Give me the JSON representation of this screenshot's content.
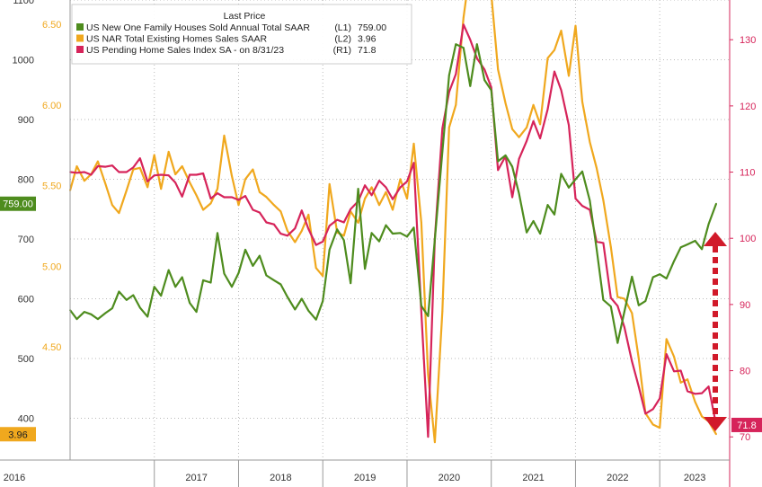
{
  "chart_data": {
    "type": "line",
    "legend_title": "Last Price",
    "legend_position": "top-left",
    "grid": true,
    "colors": {
      "green": "#4e8c1e",
      "orange": "#f0a81e",
      "red": "#d6245a",
      "arrow": "#d11a2a"
    },
    "axes": {
      "L1": {
        "min": 330,
        "max": 1100,
        "ticks": [
          400,
          500,
          600,
          700,
          800,
          900,
          1000,
          1100
        ],
        "labels": [
          "400",
          "500",
          "600",
          "700",
          "800",
          "900",
          "1000",
          "1100"
        ]
      },
      "L2": {
        "min": 3.8,
        "max": 6.65,
        "ticks": [
          4.5,
          5.0,
          5.5,
          6.0,
          6.5
        ],
        "labels": [
          "4.50",
          "5.00",
          "5.50",
          "6.00",
          "6.50"
        ]
      },
      "R1": {
        "min": 66.5,
        "max": 136,
        "ticks": [
          70,
          80,
          90,
          100,
          110,
          120,
          130
        ],
        "labels": [
          "70",
          "80",
          "90",
          "100",
          "110",
          "120",
          "130"
        ]
      }
    },
    "x_labels": [
      "2016",
      "2017",
      "2018",
      "2019",
      "2020",
      "2021",
      "2022",
      "2023"
    ],
    "x_start": 2016.0,
    "x_end": 2023.83,
    "series": [
      {
        "name": "US New One Family Houses Sold Annual Total SAAR",
        "axis": "L1",
        "axis_tag": "(L1)",
        "last_label": "759.00",
        "last_value": 759,
        "color_key": "green",
        "values": [
          [
            2016.0,
            581
          ],
          [
            2016.08,
            566
          ],
          [
            2016.17,
            578
          ],
          [
            2016.25,
            574
          ],
          [
            2016.33,
            566
          ],
          [
            2016.42,
            576
          ],
          [
            2016.5,
            584
          ],
          [
            2016.58,
            612
          ],
          [
            2016.67,
            598
          ],
          [
            2016.75,
            606
          ],
          [
            2016.83,
            585
          ],
          [
            2016.92,
            570
          ],
          [
            2017.0,
            620
          ],
          [
            2017.08,
            605
          ],
          [
            2017.17,
            648
          ],
          [
            2017.25,
            620
          ],
          [
            2017.33,
            636
          ],
          [
            2017.42,
            593
          ],
          [
            2017.5,
            578
          ],
          [
            2017.58,
            631
          ],
          [
            2017.67,
            627
          ],
          [
            2017.75,
            710
          ],
          [
            2017.83,
            642
          ],
          [
            2017.92,
            620
          ],
          [
            2018.0,
            643
          ],
          [
            2018.08,
            682
          ],
          [
            2018.17,
            655
          ],
          [
            2018.25,
            672
          ],
          [
            2018.33,
            639
          ],
          [
            2018.42,
            631
          ],
          [
            2018.5,
            624
          ],
          [
            2018.58,
            603
          ],
          [
            2018.67,
            582
          ],
          [
            2018.75,
            600
          ],
          [
            2018.83,
            580
          ],
          [
            2018.92,
            565
          ],
          [
            2019.0,
            596
          ],
          [
            2019.08,
            682
          ],
          [
            2019.17,
            716
          ],
          [
            2019.25,
            698
          ],
          [
            2019.33,
            626
          ],
          [
            2019.42,
            784
          ],
          [
            2019.5,
            650
          ],
          [
            2019.58,
            710
          ],
          [
            2019.67,
            696
          ],
          [
            2019.75,
            723
          ],
          [
            2019.83,
            709
          ],
          [
            2019.92,
            710
          ],
          [
            2020.0,
            704
          ],
          [
            2020.08,
            719
          ],
          [
            2020.17,
            588
          ],
          [
            2020.25,
            571
          ],
          [
            2020.33,
            699
          ],
          [
            2020.42,
            846
          ],
          [
            2020.5,
            974
          ],
          [
            2020.58,
            1026
          ],
          [
            2020.67,
            1020
          ],
          [
            2020.75,
            956
          ],
          [
            2020.83,
            1026
          ],
          [
            2020.92,
            966
          ],
          [
            2021.0,
            949
          ],
          [
            2021.08,
            830
          ],
          [
            2021.17,
            840
          ],
          [
            2021.25,
            821
          ],
          [
            2021.33,
            776
          ],
          [
            2021.42,
            711
          ],
          [
            2021.5,
            730
          ],
          [
            2021.58,
            709
          ],
          [
            2021.67,
            757
          ],
          [
            2021.75,
            741
          ],
          [
            2021.83,
            809
          ],
          [
            2021.92,
            786
          ],
          [
            2022.0,
            800
          ],
          [
            2022.08,
            813
          ],
          [
            2022.17,
            764
          ],
          [
            2022.25,
            684
          ],
          [
            2022.33,
            598
          ],
          [
            2022.42,
            587
          ],
          [
            2022.5,
            526
          ],
          [
            2022.58,
            578
          ],
          [
            2022.67,
            637
          ],
          [
            2022.75,
            589
          ],
          [
            2022.83,
            596
          ],
          [
            2022.92,
            636
          ],
          [
            2023.0,
            641
          ],
          [
            2023.08,
            634
          ],
          [
            2023.17,
            663
          ],
          [
            2023.25,
            686
          ],
          [
            2023.33,
            691
          ],
          [
            2023.42,
            697
          ],
          [
            2023.5,
            683
          ],
          [
            2023.58,
            725
          ],
          [
            2023.67,
            759
          ]
        ]
      },
      {
        "name": "US NAR Total Existing Homes Sales SAAR",
        "axis": "L2",
        "axis_tag": "(L2)",
        "last_label": "3.96",
        "last_value": 3.96,
        "color_key": "orange",
        "values": [
          [
            2016.0,
            5.47
          ],
          [
            2016.08,
            5.62
          ],
          [
            2016.17,
            5.53
          ],
          [
            2016.25,
            5.57
          ],
          [
            2016.33,
            5.65
          ],
          [
            2016.42,
            5.51
          ],
          [
            2016.5,
            5.38
          ],
          [
            2016.58,
            5.33
          ],
          [
            2016.67,
            5.47
          ],
          [
            2016.75,
            5.6
          ],
          [
            2016.83,
            5.61
          ],
          [
            2016.92,
            5.49
          ],
          [
            2017.0,
            5.69
          ],
          [
            2017.08,
            5.48
          ],
          [
            2017.17,
            5.71
          ],
          [
            2017.25,
            5.57
          ],
          [
            2017.33,
            5.62
          ],
          [
            2017.42,
            5.52
          ],
          [
            2017.5,
            5.44
          ],
          [
            2017.58,
            5.35
          ],
          [
            2017.67,
            5.39
          ],
          [
            2017.75,
            5.48
          ],
          [
            2017.83,
            5.81
          ],
          [
            2017.92,
            5.56
          ],
          [
            2018.0,
            5.38
          ],
          [
            2018.08,
            5.54
          ],
          [
            2018.17,
            5.6
          ],
          [
            2018.25,
            5.46
          ],
          [
            2018.33,
            5.43
          ],
          [
            2018.42,
            5.38
          ],
          [
            2018.5,
            5.34
          ],
          [
            2018.58,
            5.22
          ],
          [
            2018.67,
            5.15
          ],
          [
            2018.75,
            5.22
          ],
          [
            2018.83,
            5.32
          ],
          [
            2018.92,
            4.99
          ],
          [
            2019.0,
            4.94
          ],
          [
            2019.08,
            5.51
          ],
          [
            2019.17,
            5.21
          ],
          [
            2019.25,
            5.19
          ],
          [
            2019.33,
            5.34
          ],
          [
            2019.42,
            5.27
          ],
          [
            2019.5,
            5.42
          ],
          [
            2019.58,
            5.49
          ],
          [
            2019.67,
            5.38
          ],
          [
            2019.75,
            5.46
          ],
          [
            2019.83,
            5.35
          ],
          [
            2019.92,
            5.54
          ],
          [
            2020.0,
            5.42
          ],
          [
            2020.08,
            5.76
          ],
          [
            2020.17,
            5.27
          ],
          [
            2020.25,
            4.33
          ],
          [
            2020.33,
            3.91
          ],
          [
            2020.42,
            4.72
          ],
          [
            2020.5,
            5.86
          ],
          [
            2020.58,
            6.0
          ],
          [
            2020.67,
            6.54
          ],
          [
            2020.75,
            6.85
          ],
          [
            2020.83,
            6.69
          ],
          [
            2020.92,
            6.76
          ],
          [
            2021.0,
            6.69
          ],
          [
            2021.08,
            6.22
          ],
          [
            2021.17,
            6.01
          ],
          [
            2021.25,
            5.85
          ],
          [
            2021.33,
            5.8
          ],
          [
            2021.42,
            5.86
          ],
          [
            2021.5,
            6.0
          ],
          [
            2021.58,
            5.88
          ],
          [
            2021.67,
            6.29
          ],
          [
            2021.75,
            6.34
          ],
          [
            2021.83,
            6.46
          ],
          [
            2021.92,
            6.18
          ],
          [
            2022.0,
            6.49
          ],
          [
            2022.08,
            6.02
          ],
          [
            2022.17,
            5.77
          ],
          [
            2022.25,
            5.61
          ],
          [
            2022.33,
            5.41
          ],
          [
            2022.42,
            5.12
          ],
          [
            2022.5,
            4.81
          ],
          [
            2022.58,
            4.8
          ],
          [
            2022.67,
            4.71
          ],
          [
            2022.75,
            4.43
          ],
          [
            2022.83,
            4.09
          ],
          [
            2022.92,
            4.02
          ],
          [
            2023.0,
            4.0
          ],
          [
            2023.08,
            4.55
          ],
          [
            2023.17,
            4.44
          ],
          [
            2023.25,
            4.28
          ],
          [
            2023.33,
            4.3
          ],
          [
            2023.42,
            4.16
          ],
          [
            2023.5,
            4.07
          ],
          [
            2023.58,
            4.04
          ],
          [
            2023.67,
            3.96
          ]
        ]
      },
      {
        "name": "US Pending Home Sales Index SA - on 8/31/23",
        "axis": "R1",
        "axis_tag": "(R1)",
        "last_label": "71.8",
        "last_value": 71.8,
        "color_key": "red",
        "values": [
          [
            2016.0,
            110
          ],
          [
            2016.08,
            109.9
          ],
          [
            2016.17,
            110
          ],
          [
            2016.25,
            109.6
          ],
          [
            2016.33,
            110.9
          ],
          [
            2016.42,
            110.8
          ],
          [
            2016.5,
            111
          ],
          [
            2016.58,
            110
          ],
          [
            2016.67,
            110
          ],
          [
            2016.75,
            110.7
          ],
          [
            2016.83,
            112.1
          ],
          [
            2016.92,
            108.6
          ],
          [
            2017.0,
            109.5
          ],
          [
            2017.08,
            109.6
          ],
          [
            2017.17,
            109.5
          ],
          [
            2017.25,
            108.4
          ],
          [
            2017.33,
            106.3
          ],
          [
            2017.42,
            109.6
          ],
          [
            2017.5,
            109.6
          ],
          [
            2017.58,
            109.8
          ],
          [
            2017.67,
            106
          ],
          [
            2017.75,
            106.8
          ],
          [
            2017.83,
            106.2
          ],
          [
            2017.92,
            106.2
          ],
          [
            2018.0,
            105.8
          ],
          [
            2018.08,
            106.4
          ],
          [
            2018.17,
            104.3
          ],
          [
            2018.25,
            103.9
          ],
          [
            2018.33,
            102.4
          ],
          [
            2018.42,
            102.1
          ],
          [
            2018.5,
            100.7
          ],
          [
            2018.58,
            100.4
          ],
          [
            2018.67,
            101.5
          ],
          [
            2018.75,
            104.2
          ],
          [
            2018.83,
            101.4
          ],
          [
            2018.92,
            99.0
          ],
          [
            2019.0,
            99.5
          ],
          [
            2019.08,
            101.9
          ],
          [
            2019.17,
            102.8
          ],
          [
            2019.25,
            102.4
          ],
          [
            2019.33,
            104.4
          ],
          [
            2019.42,
            105.6
          ],
          [
            2019.5,
            108.0
          ],
          [
            2019.58,
            106.5
          ],
          [
            2019.67,
            108.7
          ],
          [
            2019.75,
            107.7
          ],
          [
            2019.83,
            105.9
          ],
          [
            2019.92,
            107.7
          ],
          [
            2020.0,
            108.6
          ],
          [
            2020.08,
            111.4
          ],
          [
            2020.17,
            88.8
          ],
          [
            2020.25,
            70.0
          ],
          [
            2020.33,
            99.9
          ],
          [
            2020.42,
            116.6
          ],
          [
            2020.5,
            122.1
          ],
          [
            2020.58,
            124.8
          ],
          [
            2020.67,
            132.3
          ],
          [
            2020.75,
            130.0
          ],
          [
            2020.83,
            127.2
          ],
          [
            2020.92,
            125.5
          ],
          [
            2021.0,
            122.8
          ],
          [
            2021.08,
            110.3
          ],
          [
            2021.17,
            112.4
          ],
          [
            2021.25,
            106.2
          ],
          [
            2021.33,
            112.0
          ],
          [
            2021.42,
            114.7
          ],
          [
            2021.5,
            117.7
          ],
          [
            2021.58,
            115.1
          ],
          [
            2021.67,
            119.5
          ],
          [
            2021.75,
            125.2
          ],
          [
            2021.83,
            122.4
          ],
          [
            2021.92,
            117.1
          ],
          [
            2022.0,
            106.0
          ],
          [
            2022.08,
            104.9
          ],
          [
            2022.17,
            104.3
          ],
          [
            2022.25,
            99.5
          ],
          [
            2022.33,
            99.3
          ],
          [
            2022.42,
            91.0
          ],
          [
            2022.5,
            89.8
          ],
          [
            2022.58,
            86.6
          ],
          [
            2022.67,
            81.4
          ],
          [
            2022.75,
            77.6
          ],
          [
            2022.83,
            73.5
          ],
          [
            2022.92,
            74.2
          ],
          [
            2023.0,
            75.8
          ],
          [
            2023.08,
            82.5
          ],
          [
            2023.17,
            79.9
          ],
          [
            2023.25,
            80.0
          ],
          [
            2023.33,
            76.9
          ],
          [
            2023.42,
            76.5
          ],
          [
            2023.5,
            76.6
          ],
          [
            2023.58,
            77.6
          ],
          [
            2023.67,
            71.8
          ]
        ]
      }
    ]
  },
  "annotations": {
    "last_price_tags": {
      "L1": "759.00",
      "L2": "3.96",
      "R1": "71.8"
    },
    "arrow": {
      "description": "double-headed dashed arrow",
      "color_key": "arrow"
    }
  }
}
